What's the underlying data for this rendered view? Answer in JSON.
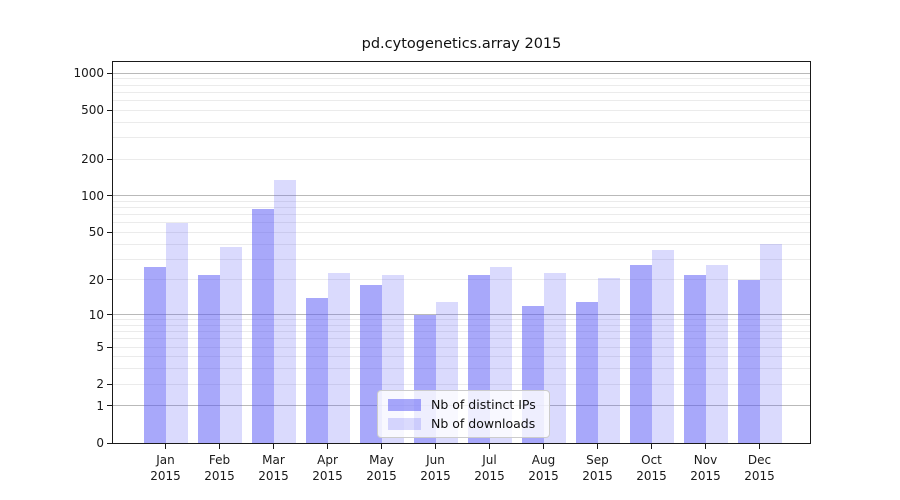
{
  "chart_data": {
    "type": "bar",
    "title": "pd.cytogenetics.array 2015",
    "x_categories": [
      "Jan 2015",
      "Feb 2015",
      "Mar 2015",
      "Apr 2015",
      "May 2015",
      "Jun 2015",
      "Jul 2015",
      "Aug 2015",
      "Sep 2015",
      "Oct 2015",
      "Nov 2015",
      "Dec 2015"
    ],
    "series": [
      {
        "name": "Nb of distinct IPs",
        "color": "rgba(88,88,245,0.52)",
        "values": [
          26,
          22,
          78,
          14,
          18,
          10,
          22,
          12,
          13,
          27,
          22,
          20
        ]
      },
      {
        "name": "Nb of downloads",
        "color": "rgba(88,88,245,0.22)",
        "values": [
          60,
          38,
          135,
          23,
          22,
          13,
          26,
          23,
          21,
          36,
          27,
          40
        ]
      }
    ],
    "y_scale": "log10(1+v)",
    "y_ticks": [
      0,
      1,
      2,
      5,
      10,
      20,
      50,
      100,
      200,
      500,
      1000
    ],
    "ylim": [
      0,
      1230
    ],
    "grid_major": [
      1,
      10,
      100,
      1000
    ],
    "grid_minor": [
      2,
      3,
      4,
      5,
      6,
      7,
      8,
      9,
      20,
      30,
      40,
      50,
      60,
      70,
      80,
      90,
      200,
      300,
      400,
      500,
      600,
      700,
      800,
      900
    ],
    "grid": "horizontal",
    "legend_position": "lower center",
    "colors": {
      "grid_major": "#b9b9b9",
      "grid_minor": "#ebebeb",
      "axis": "#1a1a1a",
      "bar_base": "#5858f5"
    }
  }
}
